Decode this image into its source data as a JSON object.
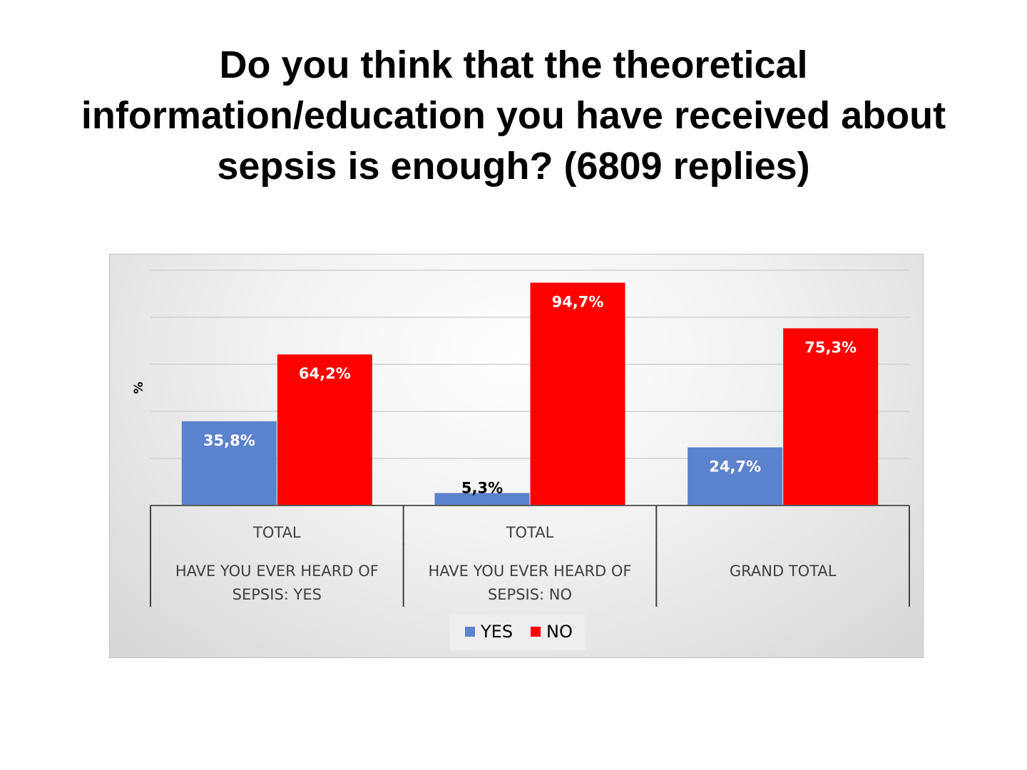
{
  "slide": {
    "title": "Do you think that the theoretical information/education you have received about sepsis is enough? (6809 replies)"
  },
  "chart_data": {
    "type": "bar",
    "title": "",
    "ylabel": "%",
    "ylim": [
      0,
      100
    ],
    "grid": true,
    "legend_position": "bottom",
    "categories": [
      {
        "outer": "HAVE YOU EVER HEARD OF SEPSIS: YES",
        "inner": "TOTAL"
      },
      {
        "outer": "HAVE YOU EVER HEARD OF SEPSIS: NO",
        "inner": "TOTAL"
      },
      {
        "outer": "GRAND TOTAL",
        "inner": ""
      }
    ],
    "series": [
      {
        "name": "YES",
        "color": "#5b82cc",
        "values": [
          35.8,
          5.3,
          24.7
        ],
        "labels": [
          "35,8%",
          "5,3%",
          "24,7%"
        ]
      },
      {
        "name": "NO",
        "color": "#ff0000",
        "values": [
          64.2,
          94.7,
          75.3
        ],
        "labels": [
          "64,2%",
          "94,7%",
          "75,3%"
        ]
      }
    ]
  }
}
